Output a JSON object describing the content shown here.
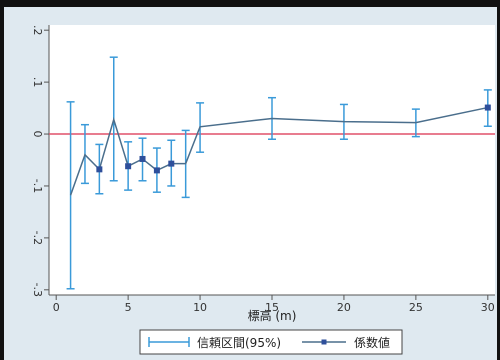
{
  "chart_data": {
    "type": "line",
    "xlabel": "標高 (m)",
    "xlim": [
      -0.5,
      30.5
    ],
    "ylim": [
      -0.31,
      0.21
    ],
    "x_ticks": [
      0,
      5,
      10,
      15,
      20,
      25,
      30
    ],
    "y_ticks": [
      -0.3,
      -0.2,
      -0.1,
      0,
      0.1,
      0.2
    ],
    "y_tick_labels": [
      "-.3",
      "-.2",
      "-.1",
      "0",
      ".1",
      ".2"
    ],
    "reference_line": 0,
    "grid": false,
    "x": [
      1,
      2,
      3,
      4,
      5,
      6,
      7,
      8,
      9,
      10,
      15,
      20,
      25,
      30
    ],
    "series": [
      {
        "name": "係数値",
        "values": [
          -0.118,
          -0.04,
          -0.068,
          0.028,
          -0.062,
          -0.048,
          -0.07,
          -0.057,
          -0.057,
          0.014,
          0.03,
          0.024,
          0.022,
          0.051
        ],
        "marked": [
          false,
          false,
          true,
          false,
          true,
          true,
          true,
          true,
          false,
          false,
          false,
          false,
          false,
          true
        ]
      },
      {
        "name": "信頼区間(95%)",
        "lower": [
          -0.298,
          -0.095,
          -0.115,
          -0.09,
          -0.108,
          -0.09,
          -0.112,
          -0.1,
          -0.122,
          -0.035,
          -0.01,
          -0.01,
          -0.005,
          0.015
        ],
        "upper": [
          0.062,
          0.018,
          -0.02,
          0.148,
          -0.015,
          -0.008,
          -0.027,
          -0.012,
          0.007,
          0.06,
          0.07,
          0.057,
          0.048,
          0.085
        ]
      }
    ],
    "legend_position": "bottom",
    "colors": {
      "line": "#4a6e8c",
      "marker": "#2e4f9b",
      "errorbar": "#3a9ad9",
      "reference": "#e0506a",
      "plot_bg": "#ffffff",
      "outer_bg": "#dfe9f0"
    }
  }
}
